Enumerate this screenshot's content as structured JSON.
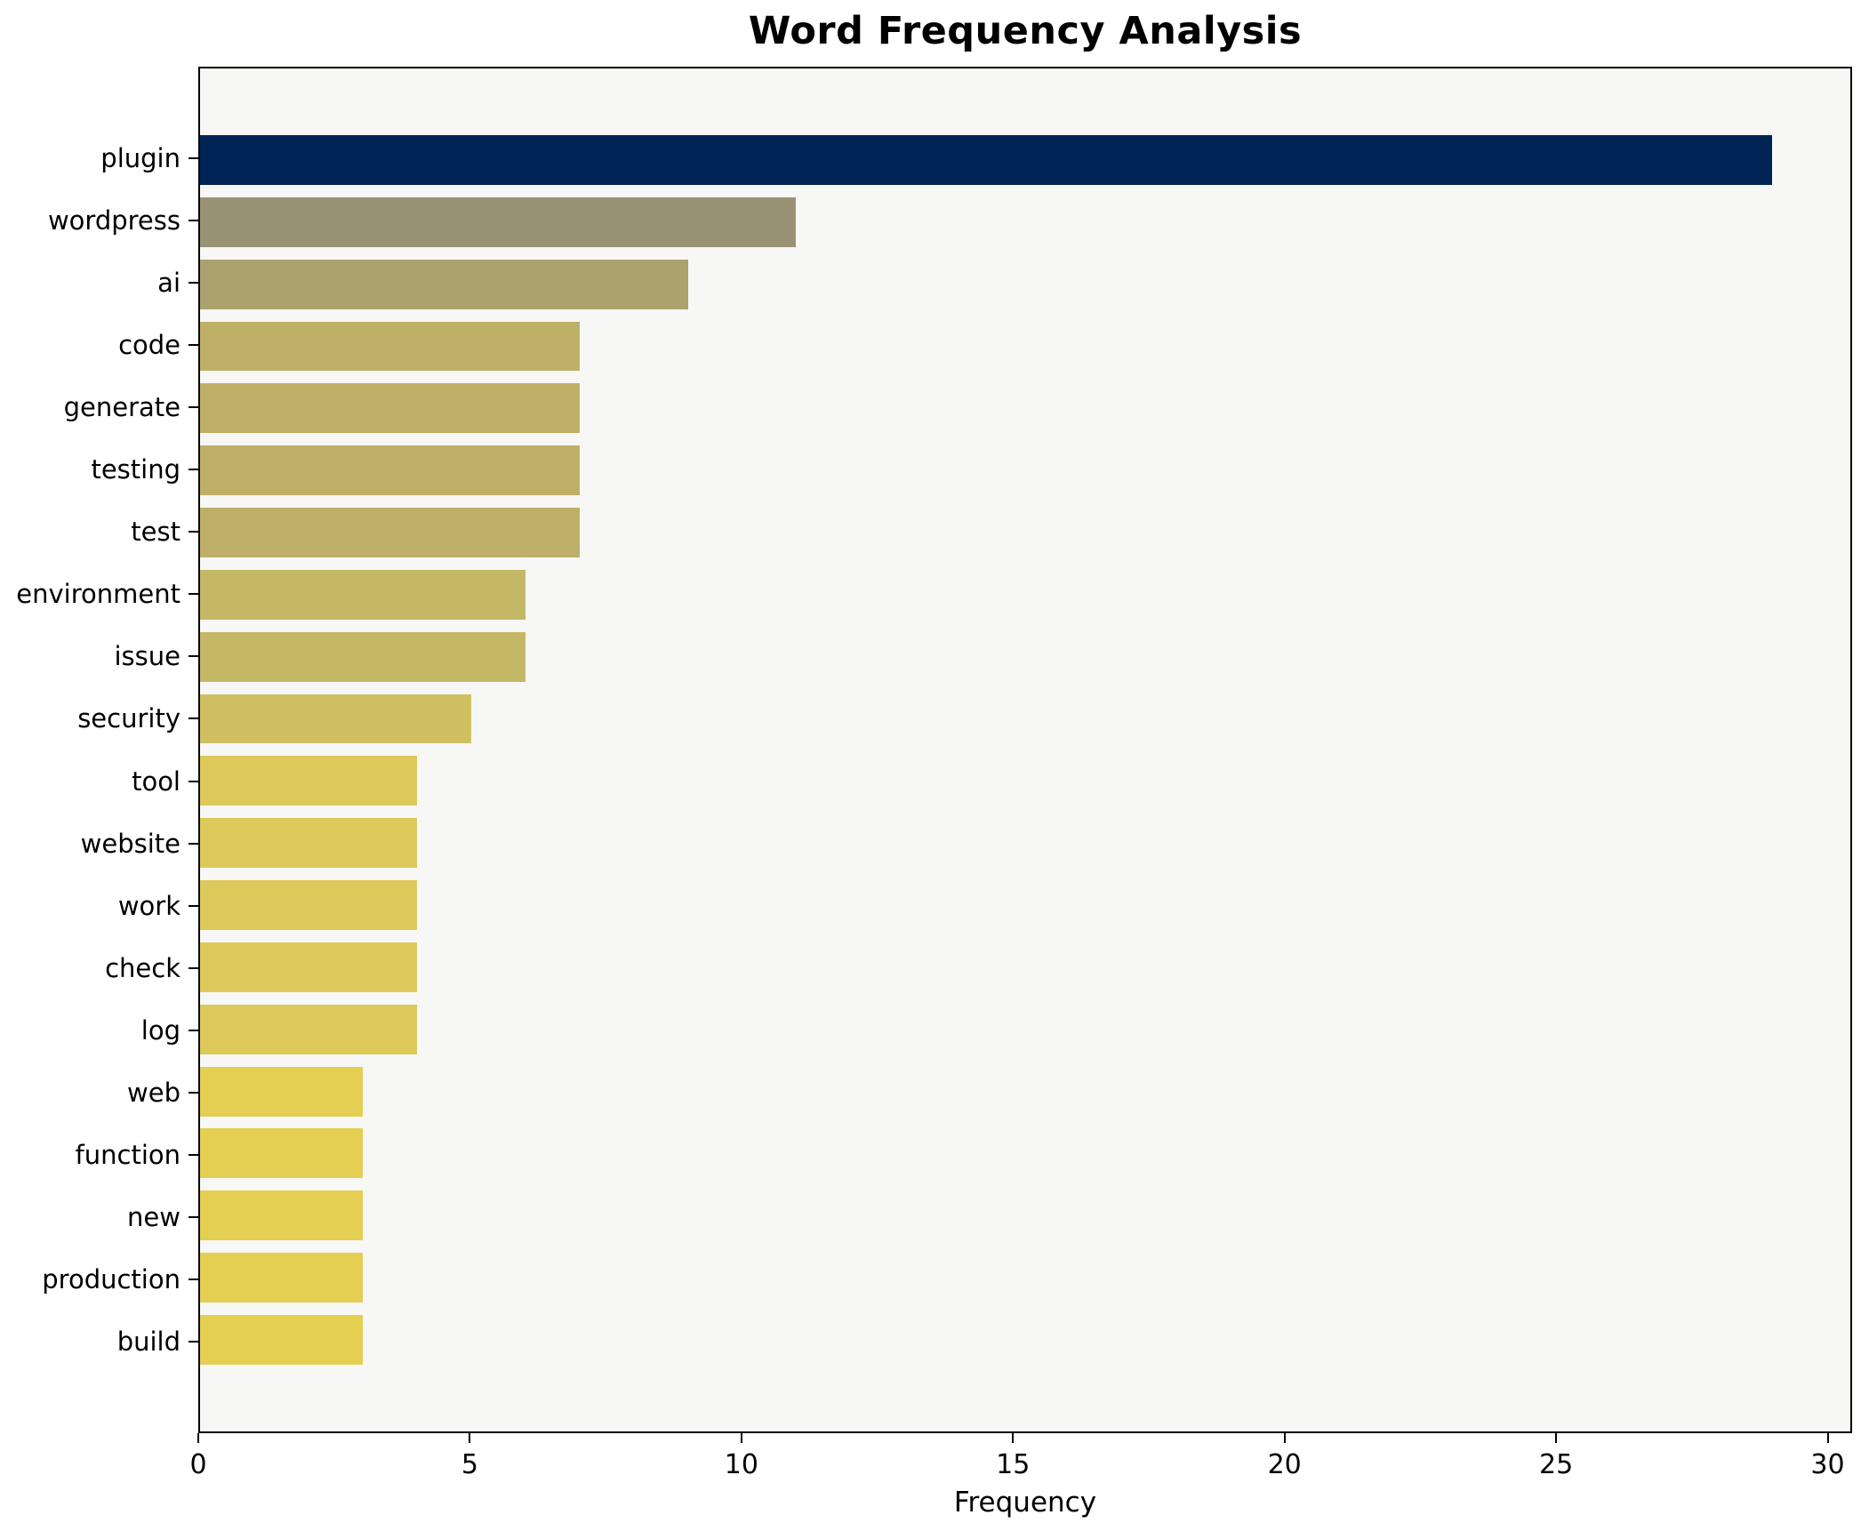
{
  "chart_data": {
    "type": "bar",
    "orientation": "horizontal",
    "title": "Word Frequency Analysis",
    "xlabel": "Frequency",
    "ylabel": "",
    "xlim": [
      0,
      30.45
    ],
    "xticks": [
      0,
      5,
      10,
      15,
      20,
      25,
      30
    ],
    "grid": false,
    "legend": "none",
    "categories": [
      "plugin",
      "wordpress",
      "ai",
      "code",
      "generate",
      "testing",
      "test",
      "environment",
      "issue",
      "security",
      "tool",
      "website",
      "work",
      "check",
      "log",
      "web",
      "function",
      "new",
      "production",
      "build"
    ],
    "values": [
      29,
      11,
      9,
      7,
      7,
      7,
      7,
      6,
      6,
      5,
      4,
      4,
      4,
      4,
      4,
      3,
      3,
      3,
      3,
      3
    ],
    "bar_colors": [
      "#002355",
      "#999274",
      "#aca26e",
      "#beb167",
      "#beb167",
      "#beb167",
      "#beb167",
      "#c4b766",
      "#c4b766",
      "#cfbf60",
      "#dcc95a",
      "#dcc95a",
      "#dcc95a",
      "#dcc95a",
      "#dcc95a",
      "#e4cf52",
      "#e4cf52",
      "#e4cf52",
      "#e4cf52",
      "#e4cf52"
    ],
    "colors": {
      "plot_background": "#f7f7f6",
      "figure_background": "#ffffff",
      "spine": "#000000",
      "text": "#000000"
    }
  }
}
